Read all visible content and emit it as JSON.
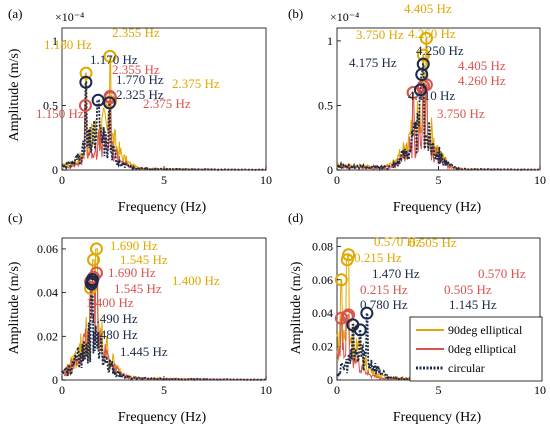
{
  "colors": {
    "orange": "#E0A800",
    "red": "#D9534F",
    "navy": "#1B2A49"
  },
  "legend": [
    "90deg elliptical",
    "0deg elliptical",
    "circular"
  ],
  "chart_data": [
    {
      "type": "line",
      "panel_label": "(a)",
      "xlabel": "Frequency (Hz)",
      "ylabel": "Amplitude (m/s)",
      "xlim": [
        0,
        10
      ],
      "ylim": [
        0,
        0.00011
      ],
      "xticks": [
        "0",
        "5",
        "10"
      ],
      "yticks": [
        "0",
        "0.5",
        "1"
      ],
      "yexponent": "×10⁻⁴",
      "peaks": {
        "orange": [
          [
            1.18,
            7.5e-05
          ],
          [
            2.355,
            8.8e-05
          ],
          [
            2.375,
            5.3e-05
          ]
        ],
        "red": [
          [
            1.15,
            5e-05
          ],
          [
            2.355,
            5.7e-05
          ],
          [
            2.375,
            5.6e-05
          ]
        ],
        "navy": [
          [
            1.17,
            6.8e-05
          ],
          [
            1.77,
            5.4e-05
          ],
          [
            2.325,
            5.2e-05
          ]
        ]
      },
      "annotations": [
        {
          "text": "2.355 Hz",
          "color": "orange"
        },
        {
          "text": "1.180 Hz",
          "color": "orange"
        },
        {
          "text": "1.170 Hz",
          "color": "navy"
        },
        {
          "text": "2.355 Hz",
          "color": "red"
        },
        {
          "text": "1.770 Hz",
          "color": "navy"
        },
        {
          "text": "2.375 Hz",
          "color": "orange"
        },
        {
          "text": "2.325 Hz",
          "color": "navy"
        },
        {
          "text": "2.375 Hz",
          "color": "red"
        },
        {
          "text": "1.150 Hz",
          "color": "red"
        }
      ]
    },
    {
      "type": "line",
      "panel_label": "(b)",
      "xlabel": "Frequency (Hz)",
      "ylabel": "",
      "xlim": [
        0,
        10
      ],
      "ylim": [
        0,
        0.00011
      ],
      "xticks": [
        "0",
        "5",
        "10"
      ],
      "yticks": [
        "0",
        "0.5",
        "1"
      ],
      "yexponent": "×10⁻⁴",
      "peaks": {
        "orange": [
          [
            4.405,
            0.000102
          ],
          [
            4.26,
            8.9e-05
          ],
          [
            3.75,
            6e-05
          ]
        ],
        "red": [
          [
            4.405,
            6.6e-05
          ],
          [
            4.26,
            6.5e-05
          ],
          [
            3.75,
            6e-05
          ]
        ],
        "navy": [
          [
            4.25,
            8.2e-05
          ],
          [
            4.175,
            7.4e-05
          ],
          [
            4.11,
            6.2e-05
          ]
        ]
      },
      "annotations": [
        {
          "text": "4.405 Hz",
          "color": "orange"
        },
        {
          "text": "3.750 Hz",
          "color": "orange"
        },
        {
          "text": "4.260 Hz",
          "color": "orange"
        },
        {
          "text": "4.250 Hz",
          "color": "navy"
        },
        {
          "text": "4.175 Hz",
          "color": "navy"
        },
        {
          "text": "4.405 Hz",
          "color": "red"
        },
        {
          "text": "4.260 Hz",
          "color": "red"
        },
        {
          "text": "4.110 Hz",
          "color": "navy"
        },
        {
          "text": "3.750 Hz",
          "color": "red"
        }
      ]
    },
    {
      "type": "line",
      "panel_label": "(c)",
      "xlabel": "Frequency (Hz)",
      "ylabel": "Amplitude (m/s)",
      "xlim": [
        0,
        10
      ],
      "ylim": [
        0,
        0.065
      ],
      "xticks": [
        "0",
        "5",
        "10"
      ],
      "yticks": [
        "0",
        "0.02",
        "0.04",
        "0.06"
      ],
      "peaks": {
        "orange": [
          [
            1.69,
            0.06
          ],
          [
            1.545,
            0.055
          ],
          [
            1.4,
            0.042
          ]
        ],
        "red": [
          [
            1.69,
            0.049
          ],
          [
            1.545,
            0.047
          ],
          [
            1.4,
            0.045
          ]
        ],
        "navy": [
          [
            1.49,
            0.046
          ],
          [
            1.48,
            0.045
          ],
          [
            1.445,
            0.044
          ]
        ]
      },
      "annotations": [
        {
          "text": "1.690 Hz",
          "color": "orange"
        },
        {
          "text": "1.545 Hz",
          "color": "orange"
        },
        {
          "text": "1.690 Hz",
          "color": "red"
        },
        {
          "text": "1.545 Hz",
          "color": "red"
        },
        {
          "text": "1.400 Hz",
          "color": "red"
        },
        {
          "text": "1.400 Hz",
          "color": "orange"
        },
        {
          "text": "1.490 Hz",
          "color": "navy"
        },
        {
          "text": "1.480 Hz",
          "color": "navy"
        },
        {
          "text": "1.445 Hz",
          "color": "navy"
        }
      ]
    },
    {
      "type": "line",
      "panel_label": "(d)",
      "xlabel": "Frequency (Hz)",
      "ylabel": "Amplitude (m/s)",
      "xlim": [
        0,
        10
      ],
      "ylim": [
        0,
        0.085
      ],
      "xticks": [
        "0",
        "5",
        "10"
      ],
      "yticks": [
        "0",
        "0.02",
        "0.04",
        "0.06",
        "0.08"
      ],
      "peaks": {
        "orange": [
          [
            0.57,
            0.075
          ],
          [
            0.505,
            0.072
          ],
          [
            0.215,
            0.06
          ]
        ],
        "red": [
          [
            0.57,
            0.039
          ],
          [
            0.505,
            0.038
          ],
          [
            0.215,
            0.037
          ]
        ],
        "navy": [
          [
            1.47,
            0.04
          ],
          [
            0.78,
            0.033
          ],
          [
            1.145,
            0.03
          ]
        ]
      },
      "annotations": [
        {
          "text": "0.570 Hz",
          "color": "orange"
        },
        {
          "text": "0.505 Hz",
          "color": "orange"
        },
        {
          "text": "0.215 Hz",
          "color": "orange"
        },
        {
          "text": "1.470 Hz",
          "color": "navy"
        },
        {
          "text": "0.570 Hz",
          "color": "red"
        },
        {
          "text": "0.215 Hz",
          "color": "red"
        },
        {
          "text": "0.505 Hz",
          "color": "red"
        },
        {
          "text": "0.780 Hz",
          "color": "navy"
        },
        {
          "text": "1.145 Hz",
          "color": "navy"
        }
      ]
    }
  ]
}
